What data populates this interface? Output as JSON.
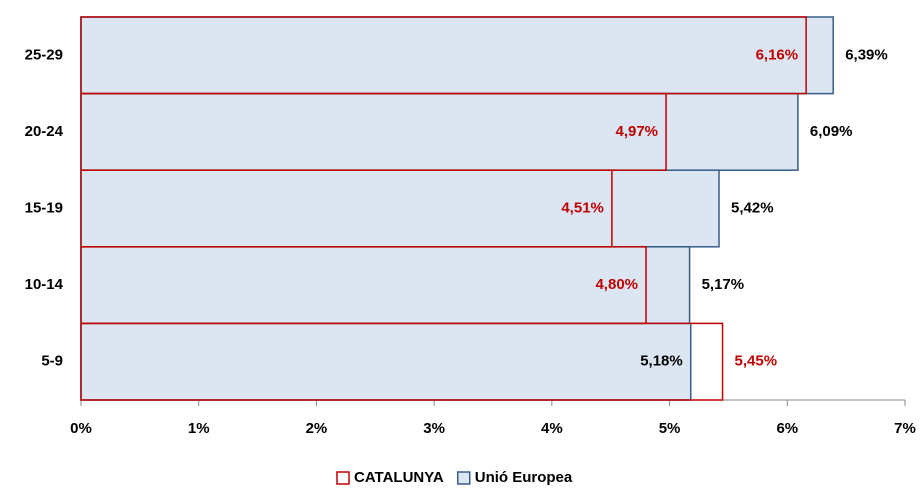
{
  "chart_data": {
    "type": "bar",
    "orientation": "horizontal",
    "categories": [
      "25-29",
      "20-24",
      "15-19",
      "10-14",
      "5-9"
    ],
    "series": [
      {
        "name": "Unió Europea",
        "color": "#dce6f2",
        "edge_color": "#385d8a",
        "label_color": "#000000",
        "values": [
          6.39,
          6.09,
          5.42,
          5.17,
          5.18
        ],
        "value_labels": [
          "6,39%",
          "6,09%",
          "5,42%",
          "5,17%",
          "5,18%"
        ]
      },
      {
        "name": "CATALUNYA",
        "color": "none",
        "edge_color": "#c00000",
        "label_color": "#c00000",
        "values": [
          6.16,
          4.97,
          4.51,
          4.8,
          5.45
        ],
        "value_labels": [
          "6,16%",
          "4,97%",
          "4,51%",
          "4,80%",
          "5,45%"
        ]
      }
    ],
    "legend_order": [
      1,
      0
    ],
    "xlim": [
      0,
      7
    ],
    "xticks": [
      {
        "value": 0,
        "label": "0%"
      },
      {
        "value": 1,
        "label": "1%"
      },
      {
        "value": 2,
        "label": "2%"
      },
      {
        "value": 3,
        "label": "3%"
      },
      {
        "value": 4,
        "label": "4%"
      },
      {
        "value": 5,
        "label": "5%"
      },
      {
        "value": 6,
        "label": "6%"
      },
      {
        "value": 7,
        "label": "7%"
      }
    ],
    "legend": "bottom"
  }
}
